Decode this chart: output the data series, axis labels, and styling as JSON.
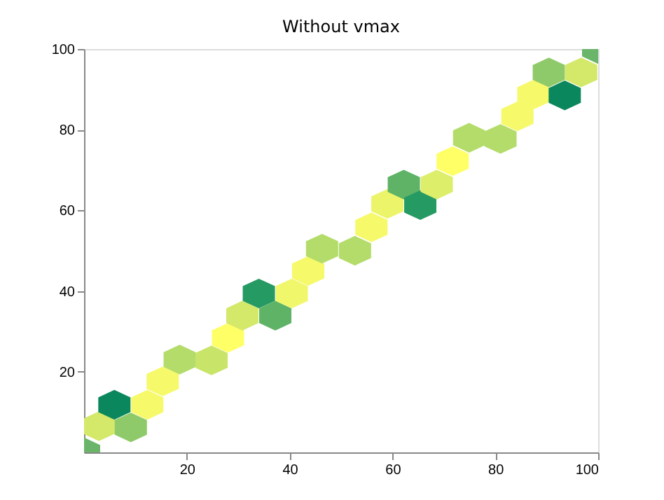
{
  "chart_data": {
    "type": "scatter",
    "title": "Without vmax",
    "x": [
      0,
      2.9,
      9.1,
      5.9,
      12.3,
      15.3,
      18.6,
      24.8,
      28,
      30.8,
      34,
      37.2,
      40.4,
      43.6,
      46.3,
      52.7,
      55.9,
      59,
      62.2,
      65.4,
      68.6,
      71.7,
      74.9,
      81,
      84.3,
      87.4,
      90.4,
      93.5,
      96.7,
      100
    ],
    "values": [
      0,
      6.5,
      6.2,
      11.8,
      11.8,
      17.6,
      23,
      22.8,
      28.4,
      33.9,
      39.4,
      33.9,
      39.4,
      45,
      50.5,
      50,
      55.8,
      61.6,
      66.4,
      61.3,
      66.4,
      72.2,
      78,
      77.7,
      83.3,
      88.7,
      94.2,
      88.5,
      94.2,
      100
    ],
    "colors": [
      "#6ab56a",
      "#d4e86a",
      "#8fca6a",
      "#0b875d",
      "#f6f96a",
      "#f6f96a",
      "#b4dc6a",
      "#c8e56a",
      "#ffff66",
      "#d4e86a",
      "#259a63",
      "#5fb366",
      "#f0f76a",
      "#f6f96a",
      "#b4dc6a",
      "#b4dc6a",
      "#f6f96a",
      "#ecf46a",
      "#5fb366",
      "#259a63",
      "#dcee6a",
      "#ffff66",
      "#b4dc6a",
      "#b4dc6a",
      "#f6f96a",
      "#f6f96a",
      "#8fca6a",
      "#0b875d",
      "#d4e86a",
      "#6ab56a"
    ],
    "xlim": [
      0,
      100
    ],
    "ylim": [
      0,
      100
    ],
    "xticks": [
      20,
      40,
      60,
      80,
      100
    ],
    "yticks": [
      20,
      40,
      60,
      80,
      100
    ],
    "grid": false
  }
}
